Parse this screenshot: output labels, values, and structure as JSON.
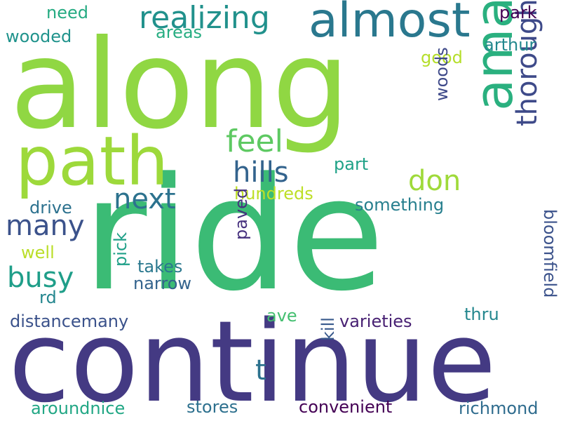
{
  "background": "#ffffff",
  "words": [
    {
      "text": "along",
      "color": "#90d743"
    },
    {
      "text": "ride",
      "color": "#3bbb75"
    },
    {
      "text": "continue",
      "color": "#443a83"
    },
    {
      "text": "path",
      "color": "#9dd93b"
    },
    {
      "text": "almost",
      "color": "#2a788e"
    },
    {
      "text": "amazing",
      "color": "#2ab07f"
    },
    {
      "text": "realizing",
      "color": "#21918c"
    },
    {
      "text": "thoroughfare",
      "color": "#3e4a89"
    },
    {
      "text": "feel",
      "color": "#5ec962"
    },
    {
      "text": "hills",
      "color": "#33638d"
    },
    {
      "text": "next",
      "color": "#2c728e"
    },
    {
      "text": "don",
      "color": "#9fda3a"
    },
    {
      "text": "many",
      "color": "#3b528b"
    },
    {
      "text": "busy",
      "color": "#1f9e89"
    },
    {
      "text": "need",
      "color": "#25ab82"
    },
    {
      "text": "wooded",
      "color": "#20938c"
    },
    {
      "text": "areas",
      "color": "#26ad81"
    },
    {
      "text": "park",
      "color": "#440154"
    },
    {
      "text": "arthur",
      "color": "#23888e"
    },
    {
      "text": "good",
      "color": "#b5de2b"
    },
    {
      "text": "woods",
      "color": "#3e4989"
    },
    {
      "text": "part",
      "color": "#1fa287"
    },
    {
      "text": "hundreds",
      "color": "#bddf26"
    },
    {
      "text": "something",
      "color": "#277f8e"
    },
    {
      "text": "drive",
      "color": "#2c718e"
    },
    {
      "text": "bloomfield",
      "color": "#3b528b"
    },
    {
      "text": "well",
      "color": "#bade28"
    },
    {
      "text": "t",
      "color": "#2c728e"
    },
    {
      "text": "paved",
      "color": "#46307e"
    },
    {
      "text": "pick",
      "color": "#1fa088"
    },
    {
      "text": "takes",
      "color": "#2a788e"
    },
    {
      "text": "narrow",
      "color": "#33638d"
    },
    {
      "text": "rd",
      "color": "#24868e"
    },
    {
      "text": "ave",
      "color": "#44bf70"
    },
    {
      "text": "thru",
      "color": "#24878e"
    },
    {
      "text": "distancemany",
      "color": "#3b528b"
    },
    {
      "text": "varieties",
      "color": "#482173"
    },
    {
      "text": "kill",
      "color": "#38598c"
    },
    {
      "text": "aroundnice",
      "color": "#22a785"
    },
    {
      "text": "stores",
      "color": "#2d708e"
    },
    {
      "text": "convenient",
      "color": "#440154"
    },
    {
      "text": "richmond",
      "color": "#2f6c8e"
    }
  ]
}
